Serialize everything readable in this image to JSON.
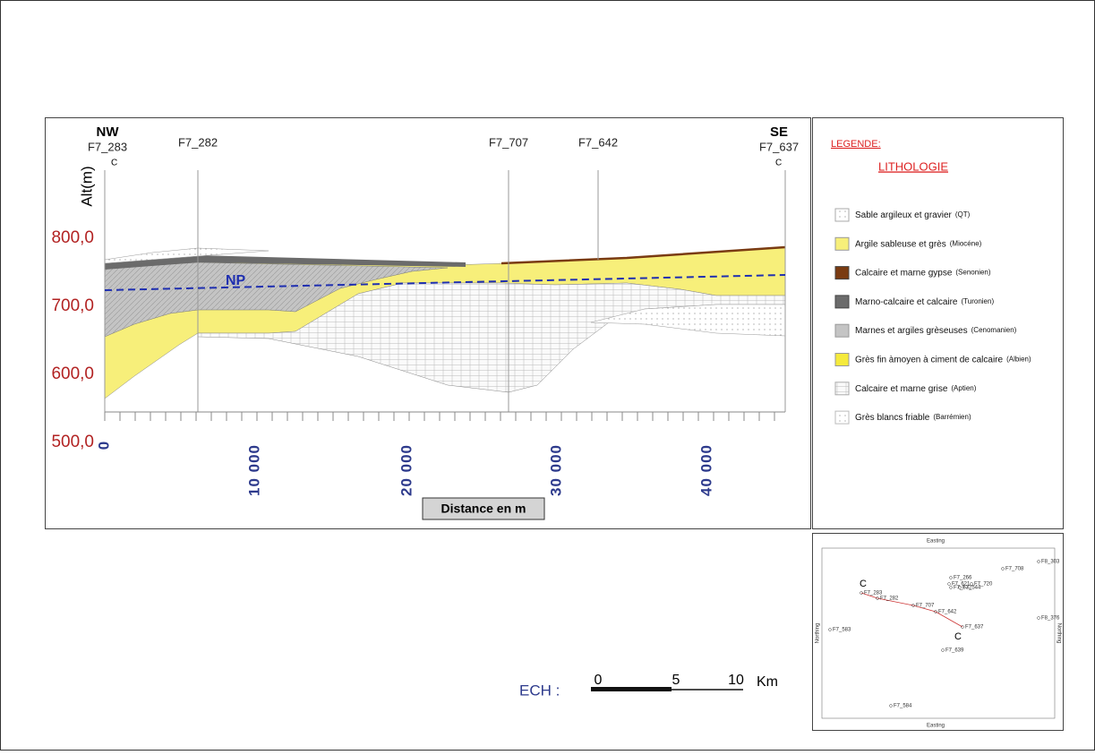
{
  "section": {
    "left_direction": "NW",
    "right_direction": "SE",
    "axis_label": "Alt(m)",
    "distance_label": "Distance en m",
    "water_table": "NP",
    "wells": [
      {
        "label": "F7_283",
        "marker": "C"
      },
      {
        "label": "F7_282"
      },
      {
        "label": "F7_707"
      },
      {
        "label": "F7_642"
      },
      {
        "label": "F7_637",
        "marker": "C"
      }
    ],
    "altitude_ticks": [
      "800,0",
      "700,0",
      "600,0",
      "500,0"
    ],
    "distance_ticks": [
      "0",
      "10 000",
      "20 000",
      "30 000",
      "40 000"
    ]
  },
  "legend": {
    "title": "LEGENDE:",
    "subtitle": "LITHOLOGIE",
    "items": [
      {
        "label": "Sable argileux et gravier",
        "age": "(QT)"
      },
      {
        "label": "Argile sableuse et grès",
        "age": "(Miocéne)"
      },
      {
        "label": "Calcaire et marne gypse",
        "age": "(Senonien)"
      },
      {
        "label": "Marno-calcaire et calcaire",
        "age": "(Turonien)"
      },
      {
        "label": "Marnes et argiles grèseuses",
        "age": "(Cenomanien)"
      },
      {
        "label": "Grès fin àmoyen à ciment de calcaire",
        "age": "(Albien)"
      },
      {
        "label": "Calcaire et marne grise",
        "age": "(Aptien)"
      },
      {
        "label": "Grès blancs friable",
        "age": "(Barrémien)"
      }
    ]
  },
  "map": {
    "axis_top": "Easting",
    "axis_bottom": "Easting",
    "axis_left": "Northing",
    "axis_right": "Northing",
    "markers": [
      "C",
      "C"
    ],
    "wells": [
      "F7_266",
      "F8_303",
      "F7_708",
      "F7_621",
      "F7_632",
      "F7_720",
      "F7_544",
      "F7_283",
      "F7_282",
      "F7_707",
      "F7_642",
      "F7_637",
      "F7_639",
      "F7_583",
      "F7_584",
      "F8_376"
    ]
  },
  "scale": {
    "label": "ECH :",
    "ticks": [
      "0",
      "5",
      "10"
    ],
    "unit": "Km"
  }
}
